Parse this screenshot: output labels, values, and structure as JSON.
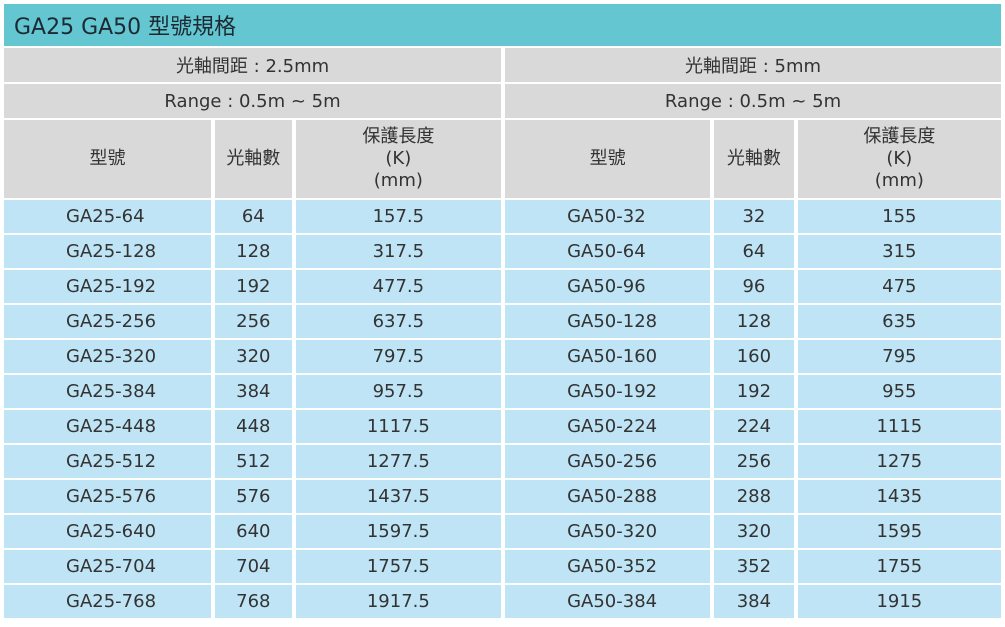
{
  "title": "GA25 GA50 型號規格",
  "left": {
    "pitch": "光軸間距 : 2.5mm",
    "range": "Range : 0.5m ~ 5m",
    "col_model": "型號",
    "col_axes": "光軸數",
    "col_length_1": "保護長度",
    "col_length_2": "(K)",
    "col_length_3": "(mm)",
    "rows": [
      {
        "model": "GA25-64",
        "axes": "64",
        "length": "157.5"
      },
      {
        "model": "GA25-128",
        "axes": "128",
        "length": "317.5"
      },
      {
        "model": "GA25-192",
        "axes": "192",
        "length": "477.5"
      },
      {
        "model": "GA25-256",
        "axes": "256",
        "length": "637.5"
      },
      {
        "model": "GA25-320",
        "axes": "320",
        "length": "797.5"
      },
      {
        "model": "GA25-384",
        "axes": "384",
        "length": "957.5"
      },
      {
        "model": "GA25-448",
        "axes": "448",
        "length": "1117.5"
      },
      {
        "model": "GA25-512",
        "axes": "512",
        "length": "1277.5"
      },
      {
        "model": "GA25-576",
        "axes": "576",
        "length": "1437.5"
      },
      {
        "model": "GA25-640",
        "axes": "640",
        "length": "1597.5"
      },
      {
        "model": "GA25-704",
        "axes": "704",
        "length": "1757.5"
      },
      {
        "model": "GA25-768",
        "axes": "768",
        "length": "1917.5"
      }
    ]
  },
  "right": {
    "pitch": "光軸間距 : 5mm",
    "range": "Range : 0.5m ~ 5m",
    "col_model": "型號",
    "col_axes": "光軸數",
    "col_length_1": "保護長度",
    "col_length_2": "(K)",
    "col_length_3": "(mm)",
    "rows": [
      {
        "model": "GA50-32",
        "axes": "32",
        "length": "155"
      },
      {
        "model": "GA50-64",
        "axes": "64",
        "length": "315"
      },
      {
        "model": "GA50-96",
        "axes": "96",
        "length": "475"
      },
      {
        "model": "GA50-128",
        "axes": "128",
        "length": "635"
      },
      {
        "model": "GA50-160",
        "axes": "160",
        "length": "795"
      },
      {
        "model": "GA50-192",
        "axes": "192",
        "length": "955"
      },
      {
        "model": "GA50-224",
        "axes": "224",
        "length": "1115"
      },
      {
        "model": "GA50-256",
        "axes": "256",
        "length": "1275"
      },
      {
        "model": "GA50-288",
        "axes": "288",
        "length": "1435"
      },
      {
        "model": "GA50-320",
        "axes": "320",
        "length": "1595"
      },
      {
        "model": "GA50-352",
        "axes": "352",
        "length": "1755"
      },
      {
        "model": "GA50-384",
        "axes": "384",
        "length": "1915"
      }
    ]
  }
}
